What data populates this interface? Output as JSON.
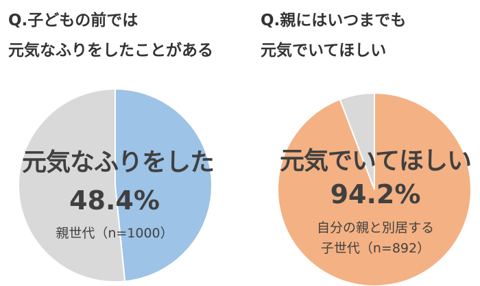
{
  "charts": [
    {
      "title_lines": [
        "Q.子どもの前では",
        "元気なふりをしたことがある"
      ],
      "label": "元気なふりをした",
      "percent_text": "48.4%",
      "sub_lines": [
        "親世代（n=1000）"
      ]
    },
    {
      "title_lines": [
        "Q.親にはいつまでも",
        "元気でいてほしい"
      ],
      "label": "元気でいてほしい",
      "percent_text": "94.2%",
      "sub_lines": [
        "自分の親と別居する",
        "子世代（n=892）"
      ]
    }
  ],
  "colors": {
    "blue": "#9dc3e6",
    "orange": "#f4b183",
    "gray": "#d9d9d9"
  },
  "chart_data": [
    {
      "type": "pie",
      "title": "Q.子どもの前では元気なふりをしたことがある",
      "slices": [
        {
          "label": "元気なふりをした",
          "value": 48.4,
          "color": "#9dc3e6"
        },
        {
          "label": "",
          "value": 51.6,
          "color": "#d9d9d9"
        }
      ],
      "n_text": "親世代（n=1000）"
    },
    {
      "type": "pie",
      "title": "Q.親にはいつまでも元気でいてほしい",
      "slices": [
        {
          "label": "元気でいてほしい",
          "value": 94.2,
          "color": "#f4b183"
        },
        {
          "label": "",
          "value": 5.8,
          "color": "#d9d9d9"
        }
      ],
      "n_text": "自分の親と別居する子世代（n=892）"
    }
  ]
}
